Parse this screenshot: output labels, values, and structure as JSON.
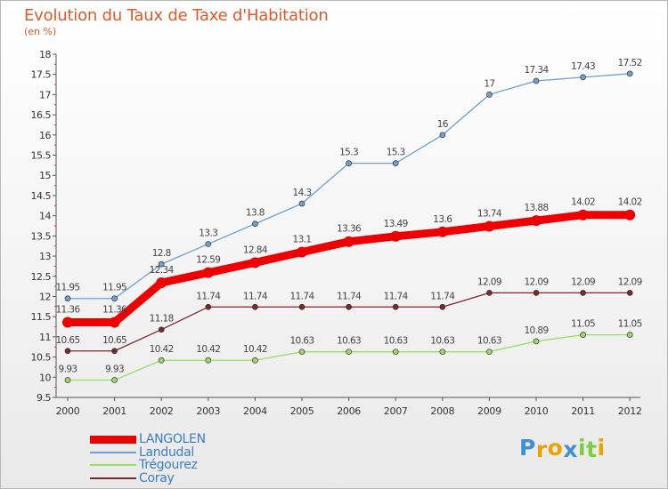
{
  "chart_data": {
    "type": "line",
    "title": "Evolution du Taux de Taxe d'Habitation",
    "subtitle": "(en %)",
    "x": [
      "2000",
      "2001",
      "2002",
      "2003",
      "2004",
      "2005",
      "2006",
      "2007",
      "2008",
      "2009",
      "2010",
      "2011",
      "2012"
    ],
    "ylim": [
      9.5,
      18
    ],
    "yticks": [
      "9.5",
      "10",
      "10.5",
      "11",
      "11.5",
      "12",
      "12.5",
      "13",
      "13.5",
      "14",
      "14.5",
      "15",
      "15.5",
      "16",
      "16.5",
      "17",
      "17.5",
      "18"
    ],
    "grid": false,
    "legend_position": "bottom-left",
    "series": [
      {
        "name": "LANGOLEN",
        "color": "#ee0000",
        "values": [
          11.36,
          11.36,
          12.34,
          12.59,
          12.84,
          13.1,
          13.36,
          13.49,
          13.6,
          13.74,
          13.88,
          14.02,
          14.02
        ],
        "labels": [
          "11.36",
          "11.36",
          "12.34",
          "12.59",
          "12.84",
          "13.1",
          "13.36",
          "13.49",
          "13.6",
          "13.74",
          "13.88",
          "14.02",
          "14.02"
        ]
      },
      {
        "name": "Landudal",
        "color": "#6fa0cf",
        "values": [
          11.95,
          11.95,
          12.8,
          13.3,
          13.8,
          14.3,
          15.3,
          15.3,
          16,
          17,
          17.34,
          17.43,
          17.52
        ],
        "labels": [
          "11.95",
          "11.95",
          "12.8",
          "13.3",
          "13.8",
          "14.3",
          "15.3",
          "15.3",
          "16",
          "17",
          "17.34",
          "17.43",
          "17.52"
        ]
      },
      {
        "name": "Trégourez",
        "color": "#9bdb6a",
        "values": [
          9.93,
          9.93,
          10.42,
          10.42,
          10.42,
          10.63,
          10.63,
          10.63,
          10.63,
          10.63,
          10.89,
          11.05,
          11.05
        ],
        "labels": [
          "9.93",
          "9.93",
          "10.42",
          "10.42",
          "10.42",
          "10.63",
          "10.63",
          "10.63",
          "10.63",
          "10.63",
          "10.89",
          "11.05",
          "11.05"
        ]
      },
      {
        "name": "Coray",
        "color": "#7a2a2a",
        "values": [
          10.65,
          10.65,
          11.18,
          11.74,
          11.74,
          11.74,
          11.74,
          11.74,
          11.74,
          12.09,
          12.09,
          12.09,
          12.09
        ],
        "labels": [
          "10.65",
          "10.65",
          "11.18",
          "11.74",
          "11.74",
          "11.74",
          "11.74",
          "11.74",
          "11.74",
          "12.09",
          "12.09",
          "12.09",
          "12.09"
        ]
      }
    ]
  },
  "logo": {
    "letters": [
      "P",
      "r",
      "o",
      "x",
      "i",
      "t",
      "i"
    ],
    "colors": [
      "#3d8fd6",
      "#e8a400",
      "#e8a400",
      "#3d8fd6",
      "#7ccf3a",
      "#7ccf3a",
      "#e8a400"
    ]
  }
}
